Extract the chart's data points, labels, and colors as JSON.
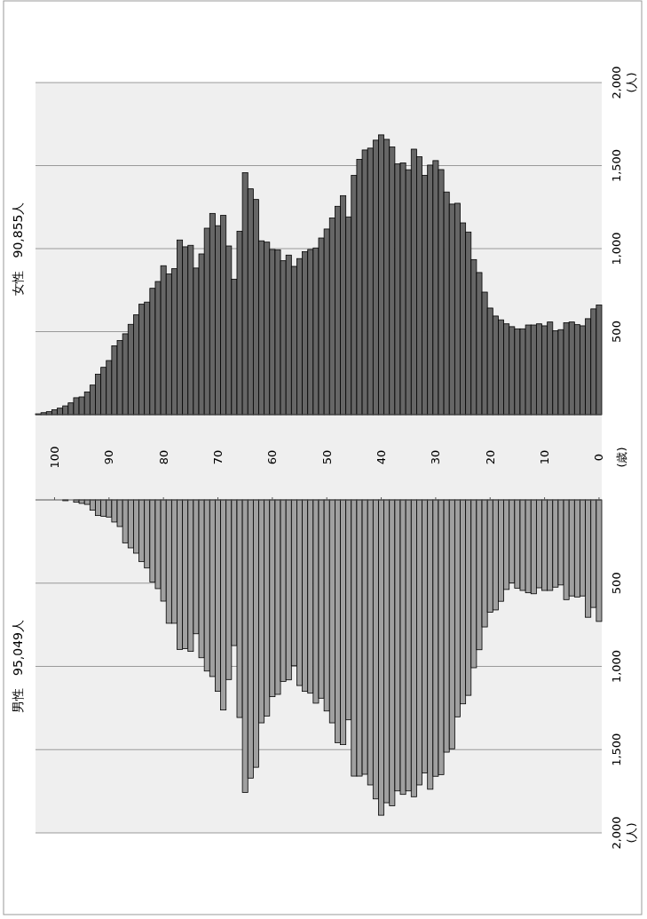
{
  "chart_data": [
    {
      "type": "bar",
      "title": "女性　90,855人",
      "ylabel": "(人)",
      "annotations": [
        "(歳)"
      ],
      "grid": "y",
      "color": "#666666",
      "categories": [
        null,
        null,
        null,
        "100",
        null,
        null,
        null,
        null,
        null,
        null,
        null,
        null,
        null,
        "90",
        null,
        null,
        null,
        null,
        null,
        null,
        null,
        null,
        null,
        "80",
        null,
        null,
        null,
        null,
        null,
        null,
        null,
        null,
        null,
        "70",
        null,
        null,
        null,
        null,
        null,
        null,
        null,
        null,
        null,
        "60",
        null,
        null,
        null,
        null,
        null,
        null,
        null,
        null,
        null,
        "50",
        null,
        null,
        null,
        null,
        null,
        null,
        null,
        null,
        null,
        "40",
        null,
        null,
        null,
        null,
        null,
        null,
        null,
        null,
        null,
        "30",
        null,
        null,
        null,
        null,
        null,
        null,
        null,
        null,
        null,
        "20",
        null,
        null,
        null,
        null,
        null,
        null,
        null,
        null,
        null,
        "10",
        null,
        null,
        null,
        null,
        null,
        null,
        null,
        null,
        null,
        "0"
      ],
      "values": [
        5,
        12,
        18,
        30,
        39,
        53,
        71,
        102,
        107,
        137,
        178,
        244,
        285,
        326,
        415,
        446,
        487,
        544,
        601,
        665,
        678,
        761,
        802,
        897,
        847,
        879,
        1052,
        1011,
        1020,
        883,
        968,
        1123,
        1212,
        1138,
        1200,
        1016,
        815,
        1105,
        1457,
        1360,
        1296,
        1047,
        1039,
        995,
        993,
        927,
        961,
        893,
        940,
        981,
        995,
        1004,
        1064,
        1118,
        1184,
        1255,
        1319,
        1191,
        1441,
        1537,
        1594,
        1605,
        1653,
        1685,
        1658,
        1612,
        1510,
        1516,
        1475,
        1599,
        1553,
        1441,
        1503,
        1530,
        1476,
        1341,
        1268,
        1273,
        1155,
        1100,
        934,
        856,
        738,
        642,
        594,
        571,
        547,
        530,
        517,
        517,
        540,
        540,
        547,
        535,
        558,
        505,
        512,
        553,
        558,
        542,
        535,
        578,
        637,
        660
      ],
      "ylim": [
        0,
        2000
      ],
      "yticks": [
        {
          "value": 500,
          "label": "500"
        },
        {
          "value": 1000,
          "label": "1,000"
        },
        {
          "value": 1500,
          "label": "1,500"
        },
        {
          "value": 2000,
          "label": "2,000"
        }
      ]
    },
    {
      "type": "bar",
      "title": "男性　95,049人",
      "ylabel": "(人)",
      "tick_labels": "y",
      "grid": "y",
      "color": "#a0a0a0",
      "categories": [
        null,
        null,
        null,
        "100",
        null,
        null,
        null,
        null,
        null,
        null,
        null,
        null,
        null,
        "90",
        null,
        null,
        null,
        null,
        null,
        null,
        null,
        null,
        null,
        "80",
        null,
        null,
        null,
        null,
        null,
        null,
        null,
        null,
        null,
        "70",
        null,
        null,
        null,
        null,
        null,
        null,
        null,
        null,
        null,
        "60",
        null,
        null,
        null,
        null,
        null,
        null,
        null,
        null,
        null,
        "50",
        null,
        null,
        null,
        null,
        null,
        null,
        null,
        null,
        null,
        "40",
        null,
        null,
        null,
        null,
        null,
        null,
        null,
        null,
        null,
        "30",
        null,
        null,
        null,
        null,
        null,
        null,
        null,
        null,
        null,
        "20",
        null,
        null,
        null,
        null,
        null,
        null,
        null,
        null,
        null,
        "10",
        null,
        null,
        null,
        null,
        null,
        null,
        null,
        null,
        null,
        "0"
      ],
      "values": [
        null,
        null,
        null,
        null,
        null,
        5,
        null,
        14,
        21,
        27,
        62,
        94,
        98,
        103,
        133,
        160,
        258,
        288,
        320,
        370,
        409,
        493,
        533,
        608,
        741,
        741,
        898,
        893,
        910,
        804,
        948,
        1028,
        1061,
        1150,
        1262,
        1079,
        875,
        1307,
        1757,
        1671,
        1606,
        1339,
        1298,
        1182,
        1168,
        1090,
        1081,
        996,
        1115,
        1150,
        1161,
        1221,
        1191,
        1268,
        1339,
        1458,
        1470,
        1321,
        1659,
        1659,
        1648,
        1712,
        1796,
        1894,
        1819,
        1837,
        1748,
        1769,
        1748,
        1783,
        1712,
        1640,
        1738,
        1660,
        1650,
        1515,
        1495,
        1303,
        1225,
        1174,
        1008,
        900,
        763,
        675,
        661,
        609,
        538,
        499,
        530,
        544,
        558,
        564,
        528,
        544,
        544,
        524,
        511,
        599,
        577,
        583,
        577,
        705,
        646,
        730
      ],
      "ylim": [
        2000,
        0
      ],
      "yticks": [
        {
          "value": 500,
          "label": "500"
        },
        {
          "value": 1000,
          "label": "1,000"
        },
        {
          "value": 1500,
          "label": "1,500"
        },
        {
          "value": 2000,
          "label": "2,000"
        }
      ]
    }
  ]
}
